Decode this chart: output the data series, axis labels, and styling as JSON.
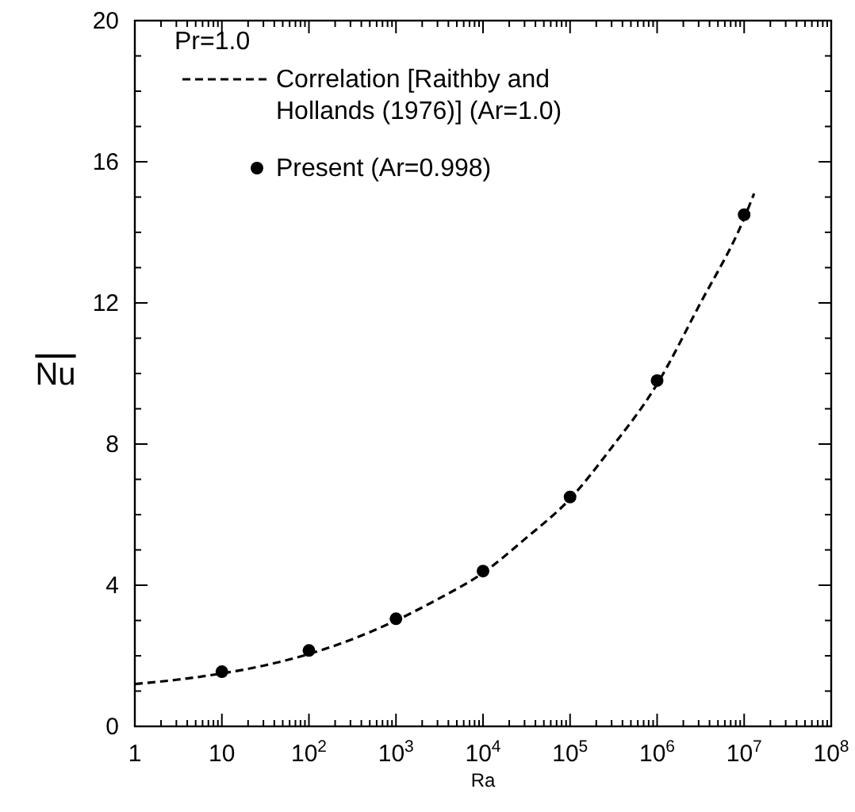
{
  "chart_data": {
    "type": "line",
    "xlabel": "Ra",
    "ylabel": "Nu",
    "log": "x",
    "xlim": [
      1,
      100000000
    ],
    "ylim": [
      0,
      20
    ],
    "xticks": [
      1,
      10,
      {
        "value": 100,
        "label": "10$^{2}$"
      },
      {
        "value": 1000,
        "label": "10$^{3}$"
      },
      {
        "value": 10000,
        "label": "10$^{4}$"
      },
      {
        "value": 100000,
        "label": "10$^{5}$"
      },
      {
        "value": 1000000,
        "label": "10$^{6}$"
      },
      {
        "value": 10000000,
        "label": "10$^{7}$"
      },
      {
        "value": 100000000,
        "label": "10$^{8}$"
      }
    ],
    "yticks": [
      0,
      {
        "value": 1,
        "label": null
      },
      {
        "value": 2,
        "label": null
      },
      {
        "value": 3,
        "label": null
      },
      4,
      {
        "value": 5,
        "label": null
      },
      {
        "value": 6,
        "label": null
      },
      {
        "value": 7,
        "label": null
      },
      8,
      {
        "value": 9,
        "label": null
      },
      {
        "value": 10,
        "label": null
      },
      {
        "value": 11,
        "label": null
      },
      12,
      {
        "value": 13,
        "label": null
      },
      {
        "value": 14,
        "label": null
      },
      {
        "value": 15,
        "label": null
      },
      16,
      {
        "value": 17,
        "label": null
      },
      {
        "value": 18,
        "label": null
      },
      {
        "value": 19,
        "label": null
      },
      20
    ],
    "legend": "top left",
    "annotations": [
      "Pr=1.0"
    ],
    "series": [
      {
        "name": "Correlation [Raithby and Hollands (1976)] (Ar=1.0)",
        "type": "line",
        "line_style": "dashed",
        "marker": "none",
        "color": "#000000",
        "x": [
          1,
          3,
          10,
          30,
          100,
          300,
          1000,
          3000,
          10000,
          30000,
          100000,
          300000,
          1000000,
          3000000,
          10000000,
          13000000
        ],
        "values": [
          1.2,
          1.32,
          1.5,
          1.72,
          2.05,
          2.45,
          3.0,
          3.6,
          4.35,
          5.3,
          6.45,
          7.9,
          9.7,
          11.9,
          14.4,
          15.1
        ]
      },
      {
        "name": "Present (Ar=0.998)",
        "type": "scatter",
        "marker": "circle",
        "color": "#000000",
        "x": [
          10,
          100,
          1000,
          10000,
          100000,
          1000000,
          10000000
        ],
        "values": [
          1.55,
          2.15,
          3.05,
          4.4,
          6.5,
          9.8,
          14.5
        ]
      }
    ]
  }
}
